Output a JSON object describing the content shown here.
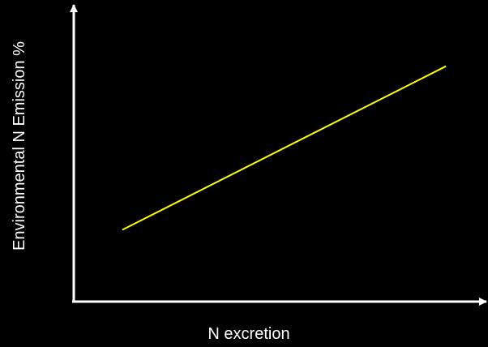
{
  "chart_data": {
    "type": "line",
    "xlabel": "N excretion",
    "ylabel": "Environmental N Emission %",
    "xlim": [
      0,
      100
    ],
    "ylim": [
      0,
      100
    ],
    "grid": false,
    "series": [
      {
        "x": [
          12,
          92
        ],
        "y": [
          25,
          82
        ]
      }
    ],
    "colors": {
      "background": "#000000",
      "axis": "#ffffff",
      "line": "#ffff00"
    }
  }
}
